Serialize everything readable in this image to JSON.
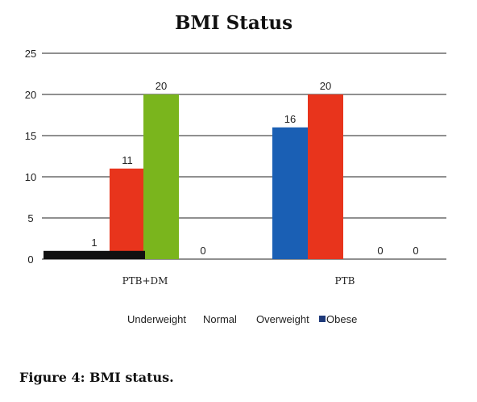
{
  "caption": "Figure 4: BMI status.",
  "chart_data": {
    "type": "bar",
    "title": "BMI Status",
    "xlabel": "",
    "ylabel": "",
    "ylim": [
      0,
      25
    ],
    "yticks": [
      0,
      5,
      10,
      15,
      20,
      25
    ],
    "grid": true,
    "legend_position": "bottom",
    "categories": [
      "PTB+DM",
      "PTB"
    ],
    "series": [
      {
        "name": "Underweight",
        "values": [
          11,
          20
        ],
        "color": "#e8341c"
      },
      {
        "name": "Normal",
        "values": [
          20,
          16
        ],
        "color": "#7ab51d"
      },
      {
        "name": "Overweight",
        "values": [
          1,
          0
        ],
        "color": "#111111"
      },
      {
        "name": "Obese",
        "values": [
          0,
          0
        ],
        "color": "#1f4e9e"
      }
    ]
  }
}
